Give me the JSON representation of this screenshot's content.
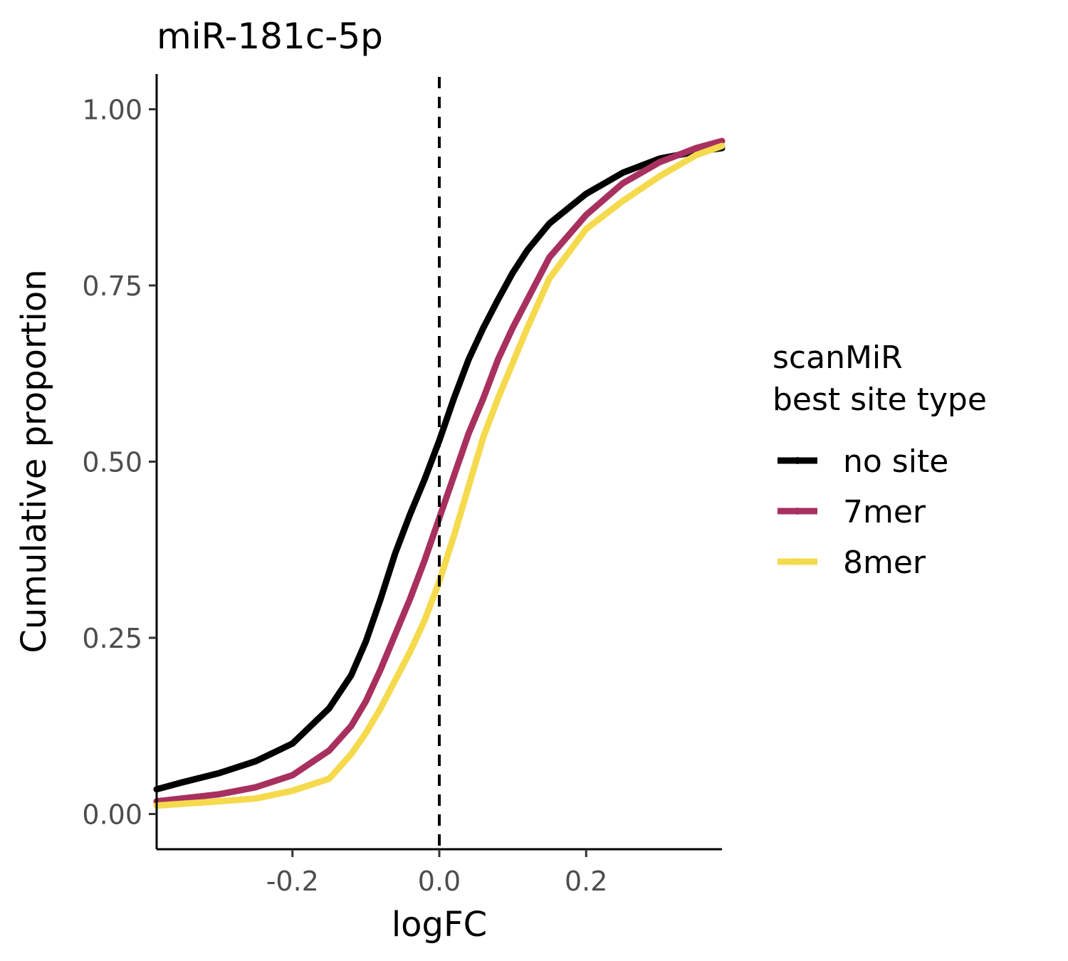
{
  "chart_data": {
    "type": "line",
    "title": "miR-181c-5p",
    "xlabel": "logFC",
    "ylabel": "Cumulative proportion",
    "xlim": [
      -0.385,
      0.385
    ],
    "ylim": [
      -0.05,
      1.05
    ],
    "x_ticks": [
      {
        "value": -0.2,
        "label": "-0.2"
      },
      {
        "value": 0.0,
        "label": "0.0"
      },
      {
        "value": 0.2,
        "label": "0.2"
      }
    ],
    "y_ticks": [
      {
        "value": 0.0,
        "label": "0.00"
      },
      {
        "value": 0.25,
        "label": "0.25"
      },
      {
        "value": 0.5,
        "label": "0.50"
      },
      {
        "value": 0.75,
        "label": "0.75"
      },
      {
        "value": 1.0,
        "label": "1.00"
      }
    ],
    "reference_line": {
      "x": 0.0,
      "style": "dashed"
    },
    "grid": false,
    "legend": {
      "title_lines": [
        "scanMiR",
        "best site type"
      ],
      "placement": "right"
    },
    "series": [
      {
        "name": "no site",
        "color": "#000000",
        "x": [
          -0.385,
          -0.35,
          -0.3,
          -0.25,
          -0.2,
          -0.15,
          -0.12,
          -0.1,
          -0.08,
          -0.06,
          -0.04,
          -0.02,
          0.0,
          0.02,
          0.04,
          0.06,
          0.08,
          0.1,
          0.12,
          0.15,
          0.2,
          0.25,
          0.3,
          0.35,
          0.385
        ],
        "y": [
          0.035,
          0.045,
          0.058,
          0.075,
          0.1,
          0.15,
          0.197,
          0.245,
          0.305,
          0.37,
          0.425,
          0.475,
          0.53,
          0.59,
          0.645,
          0.69,
          0.73,
          0.768,
          0.8,
          0.838,
          0.88,
          0.91,
          0.93,
          0.94,
          0.945
        ]
      },
      {
        "name": "7mer",
        "color": "#a8305f",
        "x": [
          -0.385,
          -0.3,
          -0.25,
          -0.2,
          -0.15,
          -0.12,
          -0.1,
          -0.08,
          -0.06,
          -0.04,
          -0.02,
          0.0,
          0.02,
          0.04,
          0.06,
          0.08,
          0.1,
          0.12,
          0.15,
          0.2,
          0.25,
          0.3,
          0.35,
          0.385
        ],
        "y": [
          0.018,
          0.028,
          0.038,
          0.055,
          0.09,
          0.125,
          0.16,
          0.205,
          0.255,
          0.305,
          0.36,
          0.42,
          0.48,
          0.54,
          0.59,
          0.645,
          0.69,
          0.73,
          0.79,
          0.85,
          0.895,
          0.925,
          0.945,
          0.955
        ]
      },
      {
        "name": "8mer",
        "color": "#f5da4e",
        "x": [
          -0.385,
          -0.3,
          -0.25,
          -0.2,
          -0.15,
          -0.12,
          -0.1,
          -0.08,
          -0.06,
          -0.04,
          -0.02,
          0.0,
          0.02,
          0.04,
          0.06,
          0.08,
          0.1,
          0.12,
          0.15,
          0.2,
          0.25,
          0.3,
          0.35,
          0.385
        ],
        "y": [
          0.012,
          0.018,
          0.022,
          0.033,
          0.05,
          0.085,
          0.115,
          0.15,
          0.19,
          0.23,
          0.275,
          0.33,
          0.395,
          0.465,
          0.535,
          0.59,
          0.64,
          0.69,
          0.76,
          0.83,
          0.87,
          0.905,
          0.935,
          0.948
        ]
      }
    ]
  }
}
